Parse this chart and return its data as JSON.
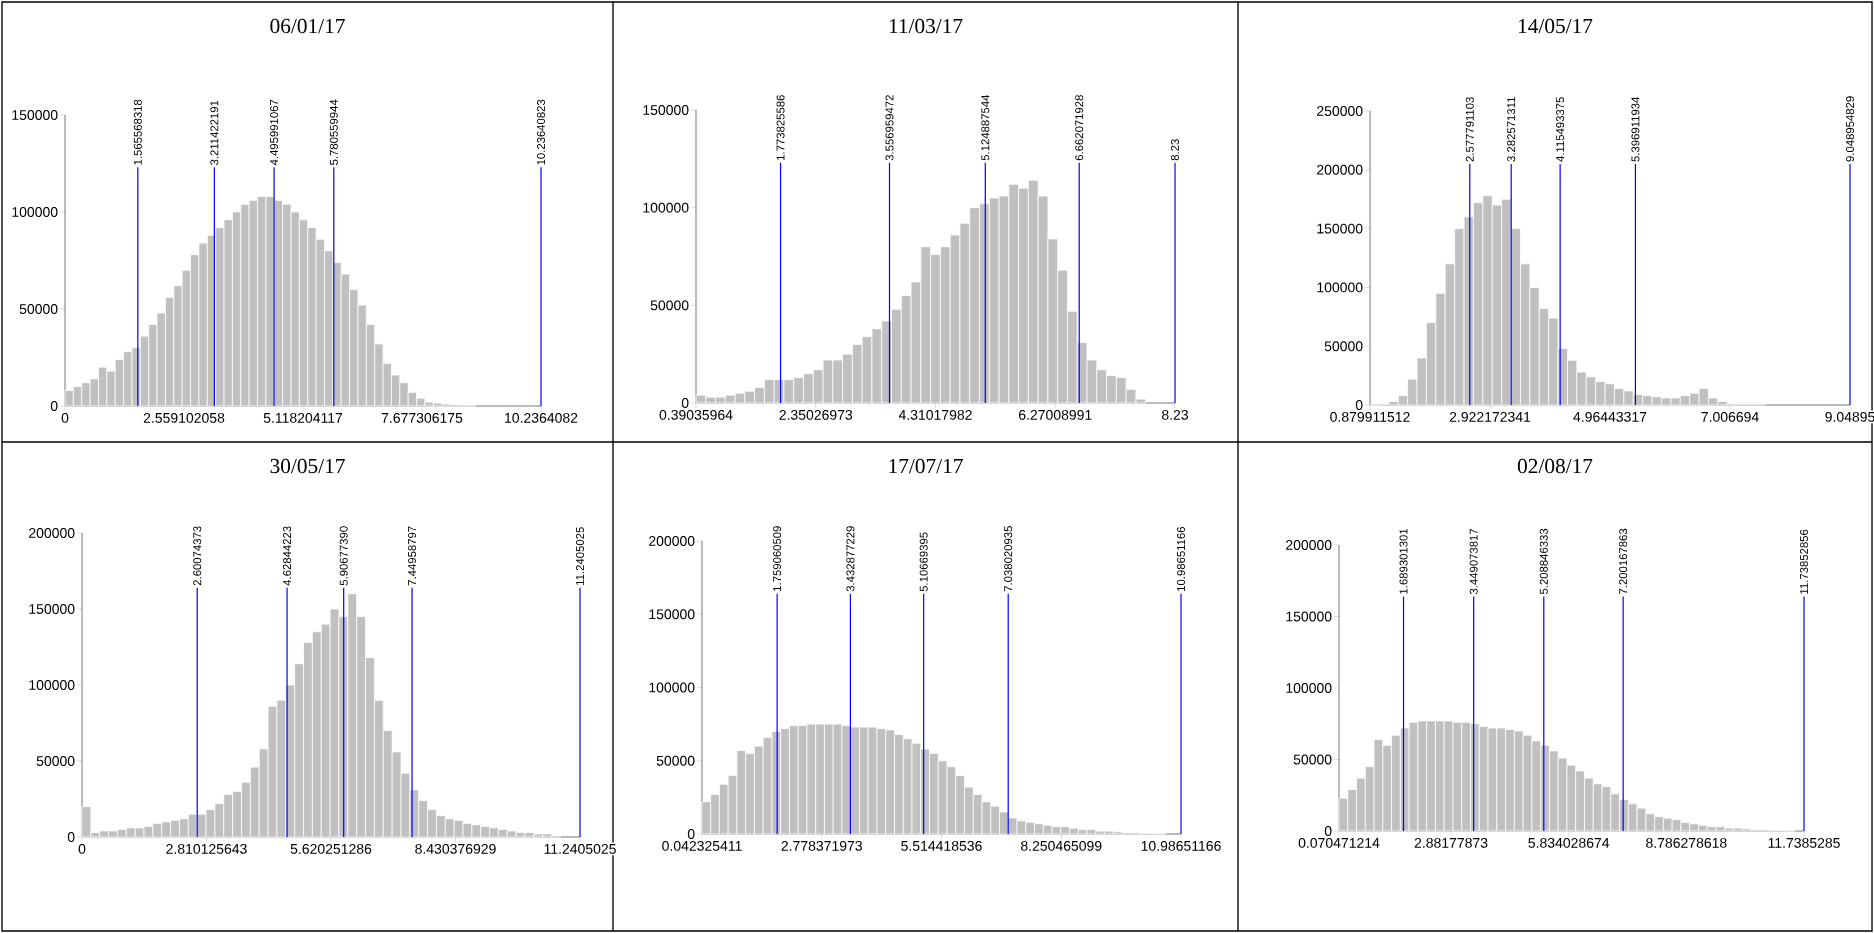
{
  "chart_data": [
    {
      "type": "histogram",
      "title": "06/01/17",
      "color": "#c0c0c0",
      "bins": [
        0,
        0.18,
        0.36,
        0.54,
        0.72,
        0.9,
        1.08,
        1.26,
        1.44,
        1.62,
        1.8,
        1.98,
        2.16,
        2.34,
        2.52,
        2.7,
        2.88,
        3.06,
        3.24,
        3.42,
        3.6,
        3.78,
        3.96,
        4.14,
        4.32,
        4.5,
        4.68,
        4.86,
        5.04,
        5.22,
        5.4,
        5.58,
        5.76,
        5.94,
        6.12,
        6.3,
        6.48,
        6.66,
        6.84,
        7.02,
        7.2,
        7.38,
        7.56,
        7.74,
        7.92,
        8.1,
        8.28,
        8.46,
        8.64,
        8.82
      ],
      "values": [
        8000,
        10000,
        12000,
        14000,
        20000,
        18000,
        24000,
        28000,
        30000,
        36000,
        42000,
        48000,
        56000,
        62000,
        70000,
        78000,
        84000,
        88000,
        92000,
        96000,
        100000,
        104000,
        106000,
        108000,
        108000,
        106000,
        104000,
        100000,
        96000,
        92000,
        86000,
        80000,
        74000,
        68000,
        60000,
        52000,
        42000,
        32000,
        22000,
        16000,
        12000,
        7000,
        4000,
        2000,
        1500,
        1000,
        800,
        600,
        400
      ],
      "xlim": [
        0,
        10.2364082
      ],
      "xticks": [
        0,
        2.559102058,
        5.118204117,
        7.677306175,
        10.2364082
      ],
      "ylim": [
        0,
        150000
      ],
      "yticks": [
        0,
        50000,
        100000,
        150000
      ],
      "ref_lines": [
        {
          "axis": "x",
          "value": 1.565568318,
          "label": "1.565568318",
          "color": "#0000ff"
        },
        {
          "axis": "x",
          "value": 3.211422191,
          "label": "3.211422191",
          "color": "#0000ff"
        },
        {
          "axis": "x",
          "value": 4.495991067,
          "label": "4.495991067",
          "color": "#0000ff"
        },
        {
          "axis": "x",
          "value": 5.780559944,
          "label": "5.780559944",
          "color": "#0000ff"
        },
        {
          "axis": "x",
          "value": 10.23640823,
          "label": "10.23640823",
          "color": "#0000ff"
        }
      ]
    },
    {
      "type": "histogram",
      "title": "11/03/17",
      "color": "#c0c0c0",
      "bins": [
        0.39,
        0.55,
        0.71,
        0.87,
        1.03,
        1.19,
        1.35,
        1.51,
        1.67,
        1.83,
        1.99,
        2.15,
        2.31,
        2.47,
        2.63,
        2.79,
        2.95,
        3.11,
        3.27,
        3.43,
        3.59,
        3.75,
        3.91,
        4.07,
        4.23,
        4.39,
        4.55,
        4.71,
        4.87,
        5.03,
        5.19,
        5.35,
        5.51,
        5.67,
        5.83,
        5.99,
        6.15,
        6.31,
        6.47,
        6.63,
        6.79,
        6.95,
        7.11,
        7.27,
        7.43,
        7.59,
        7.75
      ],
      "values": [
        4000,
        3000,
        3000,
        4000,
        5000,
        6000,
        8000,
        12000,
        12000,
        12000,
        13000,
        15000,
        17000,
        22000,
        22000,
        25000,
        30000,
        34000,
        38000,
        42000,
        48000,
        55000,
        62000,
        80000,
        76000,
        80000,
        86000,
        92000,
        100000,
        102000,
        105000,
        106000,
        112000,
        110000,
        114000,
        106000,
        84000,
        68000,
        47000,
        31000,
        22000,
        17000,
        14000,
        13000,
        7000,
        2000
      ],
      "xlim": [
        0.39035964,
        8.23
      ],
      "xticks": [
        0.39035964,
        2.35026973,
        4.31017982,
        6.27008991,
        8.23
      ],
      "ylim": [
        0,
        150000
      ],
      "yticks": [
        0,
        50000,
        100000,
        150000
      ],
      "ref_lines": [
        {
          "axis": "x",
          "value": 1.773825586,
          "label": "1.773825586",
          "color": "#0000ff"
        },
        {
          "axis": "x",
          "value": 3.556959472,
          "label": "3.556959472",
          "color": "#0000ff"
        },
        {
          "axis": "x",
          "value": 5.124887544,
          "label": "5.124887544",
          "color": "#0000ff"
        },
        {
          "axis": "x",
          "value": 6.662071928,
          "label": "6.662071928",
          "color": "#0000ff"
        },
        {
          "axis": "x",
          "value": 8.23,
          "label": "8.23",
          "color": "#0000ff"
        }
      ]
    },
    {
      "type": "histogram",
      "title": "14/05/17",
      "color": "#c0c0c0",
      "bins": [
        0.88,
        1.04,
        1.2,
        1.36,
        1.52,
        1.68,
        1.84,
        2,
        2.16,
        2.32,
        2.48,
        2.64,
        2.8,
        2.96,
        3.12,
        3.28,
        3.44,
        3.6,
        3.76,
        3.92,
        4.08,
        4.24,
        4.4,
        4.56,
        4.72,
        4.88,
        5.04,
        5.2,
        5.36,
        5.52,
        5.68,
        5.84,
        6,
        6.16,
        6.32,
        6.48,
        6.64,
        6.8,
        6.96,
        7.12,
        7.28,
        7.44,
        7.6
      ],
      "values": [
        0,
        1000,
        3000,
        8000,
        22000,
        40000,
        70000,
        95000,
        120000,
        150000,
        160000,
        172000,
        178000,
        170000,
        175000,
        150000,
        120000,
        100000,
        82000,
        74000,
        48000,
        38000,
        28000,
        24000,
        20000,
        18000,
        14000,
        12000,
        9000,
        8000,
        7000,
        6000,
        6000,
        8000,
        10000,
        14000,
        6000,
        3000,
        1000,
        1000,
        1000,
        1000
      ],
      "xlim": [
        0.879911512,
        9.04895
      ],
      "xticks": [
        0.879911512,
        2.922172341,
        4.96443317,
        7.006694,
        9.04895
      ],
      "ylim": [
        0,
        250000
      ],
      "yticks": [
        0,
        50000,
        100000,
        150000,
        200000,
        250000
      ],
      "ref_lines": [
        {
          "axis": "x",
          "value": 2.577791103,
          "label": "2.577791103",
          "color": "#0000ff"
        },
        {
          "axis": "x",
          "value": 3.282571311,
          "label": "3.282571311",
          "color": "#0000ff"
        },
        {
          "axis": "x",
          "value": 4.115493375,
          "label": "4.115493375",
          "color": "#0000ff"
        },
        {
          "axis": "x",
          "value": 5.396911934,
          "label": "5.396911934",
          "color": "#0000ff"
        },
        {
          "axis": "x",
          "value": 9.048954829,
          "label": "9.048954829",
          "color": "#0000ff"
        }
      ]
    },
    {
      "type": "histogram",
      "title": "30/05/17",
      "color": "#c0c0c0",
      "bins": [
        0,
        0.2,
        0.4,
        0.6,
        0.8,
        1,
        1.2,
        1.4,
        1.6,
        1.8,
        2,
        2.2,
        2.4,
        2.6,
        2.8,
        3,
        3.2,
        3.4,
        3.6,
        3.8,
        4,
        4.2,
        4.4,
        4.6,
        4.8,
        5,
        5.2,
        5.4,
        5.6,
        5.8,
        6,
        6.2,
        6.4,
        6.6,
        6.8,
        7,
        7.2,
        7.4,
        7.6,
        7.8,
        8,
        8.2,
        8.4,
        8.6,
        8.8,
        9,
        9.2,
        9.4,
        9.6,
        9.8,
        10,
        10.2,
        10.4,
        10.6,
        10.8
      ],
      "values": [
        20000,
        3000,
        4000,
        4000,
        5000,
        6000,
        6000,
        7000,
        9000,
        10000,
        11000,
        12000,
        15000,
        15000,
        18000,
        22000,
        28000,
        30000,
        36000,
        46000,
        58000,
        86000,
        90000,
        100000,
        114000,
        128000,
        135000,
        140000,
        150000,
        145000,
        160000,
        145000,
        118000,
        90000,
        70000,
        56000,
        42000,
        31000,
        24000,
        18000,
        14000,
        12000,
        11000,
        9000,
        8000,
        7000,
        6000,
        5000,
        4000,
        3000,
        3000,
        2000,
        2000,
        1000
      ],
      "xlim": [
        0,
        11.2405025
      ],
      "xticks": [
        0,
        2.810125643,
        5.620251286,
        8.430376929,
        11.2405025
      ],
      "ylim": [
        0,
        200000
      ],
      "yticks": [
        0,
        50000,
        100000,
        150000,
        200000
      ],
      "ref_lines": [
        {
          "axis": "x",
          "value": 2.60074373,
          "label": "2.60074373",
          "color": "#0000ff"
        },
        {
          "axis": "x",
          "value": 4.62844223,
          "label": "4.62844223",
          "color": "#0000ff"
        },
        {
          "axis": "x",
          "value": 5.9067739,
          "label": "5.90677390",
          "color": "#0000ff"
        },
        {
          "axis": "x",
          "value": 7.44958797,
          "label": "7.44958797",
          "color": "#0000ff"
        },
        {
          "axis": "x",
          "value": 11.2405025,
          "label": "11.2405025",
          "color": "#0000ff"
        }
      ]
    },
    {
      "type": "histogram",
      "title": "17/07/17",
      "color": "#c0c0c0",
      "bins": [
        0.04,
        0.24,
        0.44,
        0.64,
        0.84,
        1.04,
        1.24,
        1.44,
        1.64,
        1.84,
        2.04,
        2.24,
        2.44,
        2.64,
        2.84,
        3.04,
        3.24,
        3.44,
        3.64,
        3.84,
        4.04,
        4.24,
        4.44,
        4.64,
        4.84,
        5.04,
        5.24,
        5.44,
        5.64,
        5.84,
        6.04,
        6.24,
        6.44,
        6.64,
        6.84,
        7.04,
        7.24,
        7.44,
        7.64,
        7.84,
        8.04,
        8.24,
        8.44,
        8.64,
        8.84,
        9.04,
        9.24,
        9.44,
        9.64,
        9.84,
        10.04,
        10.24,
        10.44,
        10.64
      ],
      "values": [
        22000,
        27000,
        34000,
        40000,
        57000,
        55000,
        60000,
        66000,
        70000,
        72000,
        74000,
        74000,
        75000,
        75000,
        75000,
        75000,
        74000,
        73000,
        73000,
        73000,
        72000,
        71000,
        68000,
        65000,
        62000,
        58000,
        55000,
        50000,
        46000,
        40000,
        32000,
        27000,
        22000,
        19000,
        15000,
        11000,
        9000,
        8000,
        7000,
        6000,
        5000,
        5000,
        4000,
        3000,
        3000,
        2000,
        2000,
        1500,
        1000,
        1000,
        500,
        500,
        300
      ],
      "xlim": [
        0.042325411,
        10.98651166
      ],
      "xticks": [
        0.042325411,
        2.778371973,
        5.514418536,
        8.250465099,
        10.98651166
      ],
      "ylim": [
        0,
        200000
      ],
      "yticks": [
        0,
        50000,
        100000,
        150000,
        200000
      ],
      "ref_lines": [
        {
          "axis": "x",
          "value": 1.759060509,
          "label": "1.759060509",
          "color": "#0000ff"
        },
        {
          "axis": "x",
          "value": 3.432877229,
          "label": "3.432877229",
          "color": "#0000ff"
        },
        {
          "axis": "x",
          "value": 5.10669395,
          "label": "5.10669395",
          "color": "#0000ff"
        },
        {
          "axis": "x",
          "value": 7.038020935,
          "label": "7.038020935",
          "color": "#0000ff"
        },
        {
          "axis": "x",
          "value": 10.98651166,
          "label": "10.98651166",
          "color": "#0000ff"
        }
      ]
    },
    {
      "type": "histogram",
      "title": "02/08/17",
      "color": "#c0c0c0",
      "bins": [
        0.07,
        0.29,
        0.51,
        0.73,
        0.95,
        1.17,
        1.39,
        1.61,
        1.83,
        2.05,
        2.27,
        2.49,
        2.71,
        2.93,
        3.15,
        3.37,
        3.59,
        3.81,
        4.03,
        4.25,
        4.47,
        4.69,
        4.91,
        5.13,
        5.35,
        5.57,
        5.79,
        6.01,
        6.23,
        6.45,
        6.67,
        6.89,
        7.11,
        7.33,
        7.55,
        7.77,
        7.99,
        8.21,
        8.43,
        8.65,
        8.87,
        9.09,
        9.31,
        9.53,
        9.75,
        9.97,
        10.19,
        10.41,
        10.63,
        10.85,
        11.07,
        11.29,
        11.51
      ],
      "values": [
        23000,
        29000,
        37000,
        45000,
        64000,
        60000,
        67000,
        72000,
        76000,
        77000,
        77000,
        77000,
        77000,
        76000,
        76000,
        75000,
        73000,
        72000,
        72000,
        71000,
        70000,
        67000,
        63000,
        60000,
        56000,
        51000,
        46000,
        42000,
        37000,
        33000,
        31000,
        26000,
        22000,
        19000,
        16000,
        12000,
        10000,
        9000,
        8000,
        6000,
        5000,
        4000,
        3000,
        3000,
        2000,
        2000,
        1500,
        1000,
        1000,
        500,
        500,
        300
      ],
      "xlim": [
        0.070471214,
        11.7385285
      ],
      "xticks": [
        0.070471214,
        2.88177873,
        5.834028674,
        8.786278618,
        11.7385285
      ],
      "ylim": [
        0,
        200000
      ],
      "yticks": [
        0,
        50000,
        100000,
        150000,
        200000
      ],
      "ref_lines": [
        {
          "axis": "x",
          "value": 1.689301301,
          "label": "1.689301301",
          "color": "#0000ff"
        },
        {
          "axis": "x",
          "value": 3.449073817,
          "label": "3.449073817",
          "color": "#0000ff"
        },
        {
          "axis": "x",
          "value": 5.208846333,
          "label": "5.208846333",
          "color": "#0000ff"
        },
        {
          "axis": "x",
          "value": 7.200167863,
          "label": "7.200167863",
          "color": "#0000ff"
        },
        {
          "axis": "x",
          "value": 11.73852856,
          "label": "11.73852856",
          "color": "#0000ff"
        }
      ]
    }
  ]
}
